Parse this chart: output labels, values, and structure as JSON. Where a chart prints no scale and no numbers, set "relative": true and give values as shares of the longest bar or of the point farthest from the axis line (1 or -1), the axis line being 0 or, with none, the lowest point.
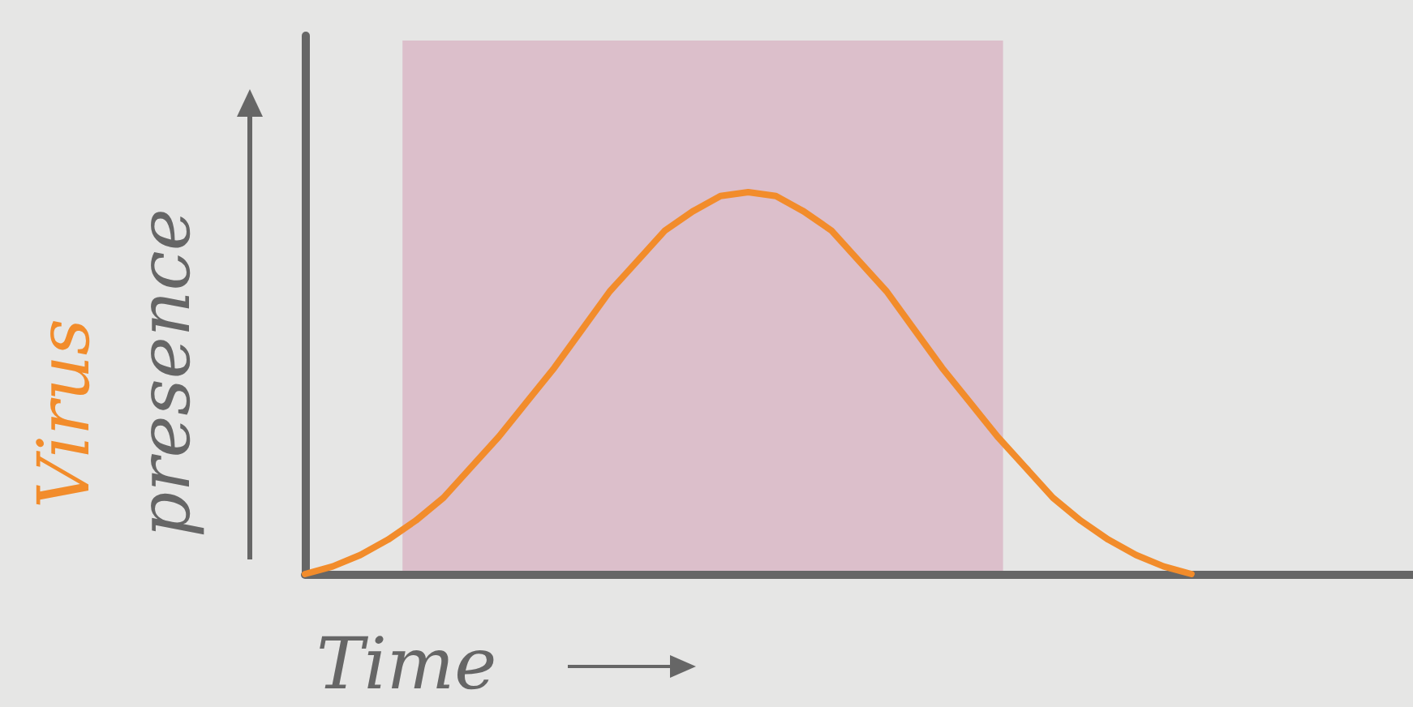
{
  "chart_data": {
    "type": "line",
    "xlabel": "Time",
    "ylabel": "presence",
    "relative": true,
    "marker": "none",
    "tick_labels": false,
    "categories": [
      null,
      null,
      null,
      null,
      null,
      null,
      null,
      null,
      null,
      null,
      null,
      null,
      null,
      null,
      null,
      null,
      null,
      null,
      null,
      null,
      null,
      null,
      null,
      null,
      null,
      null,
      null,
      null,
      null,
      null,
      null,
      null,
      null,
      null,
      null,
      null,
      null,
      null,
      null,
      null,
      null
    ],
    "series": [
      {
        "name": "Virus",
        "color": "#f28c2b",
        "values": [
          0,
          0.02,
          0.05,
          0.09,
          0.14,
          0.2,
          0.28,
          0.36,
          0.45,
          0.54,
          0.64,
          0.74,
          0.82,
          0.9,
          0.95,
          0.99,
          1,
          0.99,
          0.95,
          0.9,
          0.82,
          0.74,
          0.64,
          0.54,
          0.45,
          0.36,
          0.28,
          0.2,
          0.14,
          0.09,
          0.05,
          0.02,
          0,
          null,
          null,
          null,
          null,
          null,
          null,
          null,
          null
        ]
      }
    ]
  }
}
